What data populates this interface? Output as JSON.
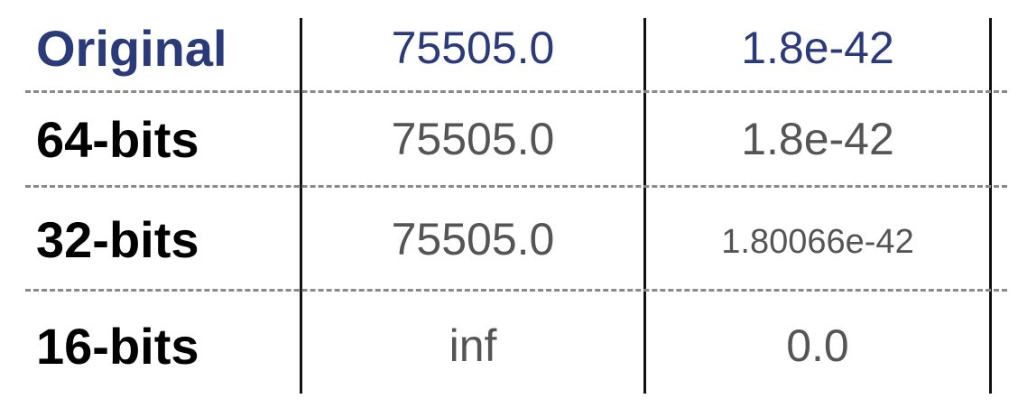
{
  "rows": [
    {
      "label": "Original",
      "v1": "75505.0",
      "v2": "1.8e-42"
    },
    {
      "label": "64-bits",
      "v1": "75505.0",
      "v2": "1.8e-42"
    },
    {
      "label": "32-bits",
      "v1": "75505.0",
      "v2": "1.80066e-42"
    },
    {
      "label": "16-bits",
      "v1": "inf",
      "v2": "0.0"
    }
  ],
  "colors": {
    "original_row": "#2b3a78",
    "values": "#555555",
    "labels": "#000000"
  }
}
